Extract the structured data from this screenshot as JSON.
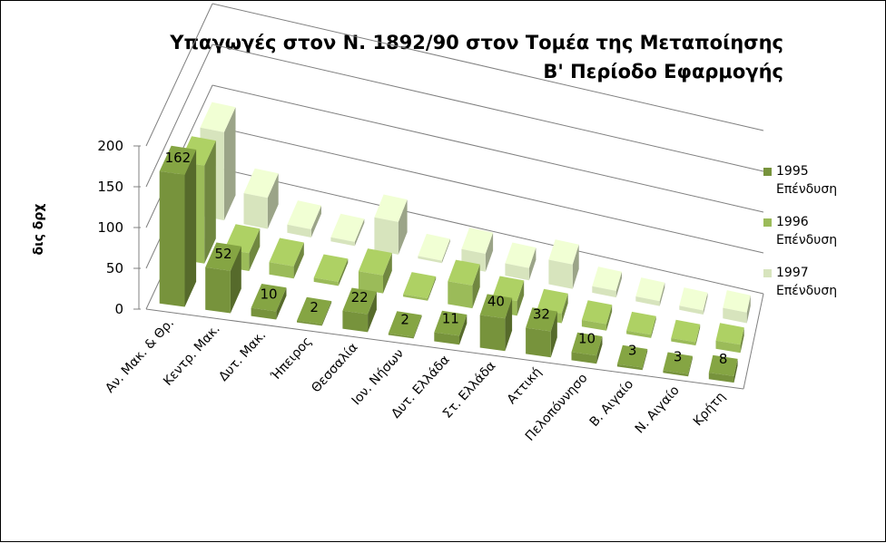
{
  "chart_data": {
    "type": "bar",
    "title": [
      "Υπαγωγές στον Ν. 1892/90 στον Τομέα της Μεταποίησης",
      "Β' Περίοδο Εφαρμογής"
    ],
    "ylabel": "δις δρχ",
    "ylim": [
      0,
      200
    ],
    "yticks": [
      "0",
      "50",
      "100",
      "150",
      "200"
    ],
    "categories": [
      "Αν. Μακ. & Θρ.",
      "Κεντρ. Μακ.",
      "Δυτ. Μακ.",
      "Ήπειρος",
      "Θεσσαλία",
      "Ιον. Νήσων",
      "Δυτ. Ελλάδα",
      "Στ. Ελλάδα",
      "Αττική",
      "Πελοπόννησο",
      "Β. Αιγαίο",
      "Ν. Αιγαίο",
      "Κρήτη"
    ],
    "series": [
      {
        "name": [
          "1995",
          "Επένδυση"
        ],
        "color": "#77933c",
        "values": [
          162,
          52,
          10,
          2,
          22,
          2,
          11,
          40,
          32,
          10,
          3,
          3,
          8
        ],
        "labels": [
          "162",
          "52",
          "10",
          "2",
          "22",
          "2",
          "11",
          "40",
          "32",
          "10",
          "3",
          "3",
          "8"
        ]
      },
      {
        "name": [
          "1996",
          "Επένδυση"
        ],
        "color": "#9bbb59",
        "values": [
          120,
          22,
          15,
          5,
          22,
          3,
          28,
          18,
          12,
          8,
          4,
          4,
          10
        ],
        "labels": []
      },
      {
        "name": [
          "1997",
          "Επένδυση"
        ],
        "color": "#d7e4bd",
        "values": [
          108,
          38,
          10,
          5,
          40,
          3,
          22,
          15,
          30,
          8,
          6,
          5,
          13
        ],
        "labels": []
      }
    ],
    "grid": true,
    "legend": "right"
  }
}
